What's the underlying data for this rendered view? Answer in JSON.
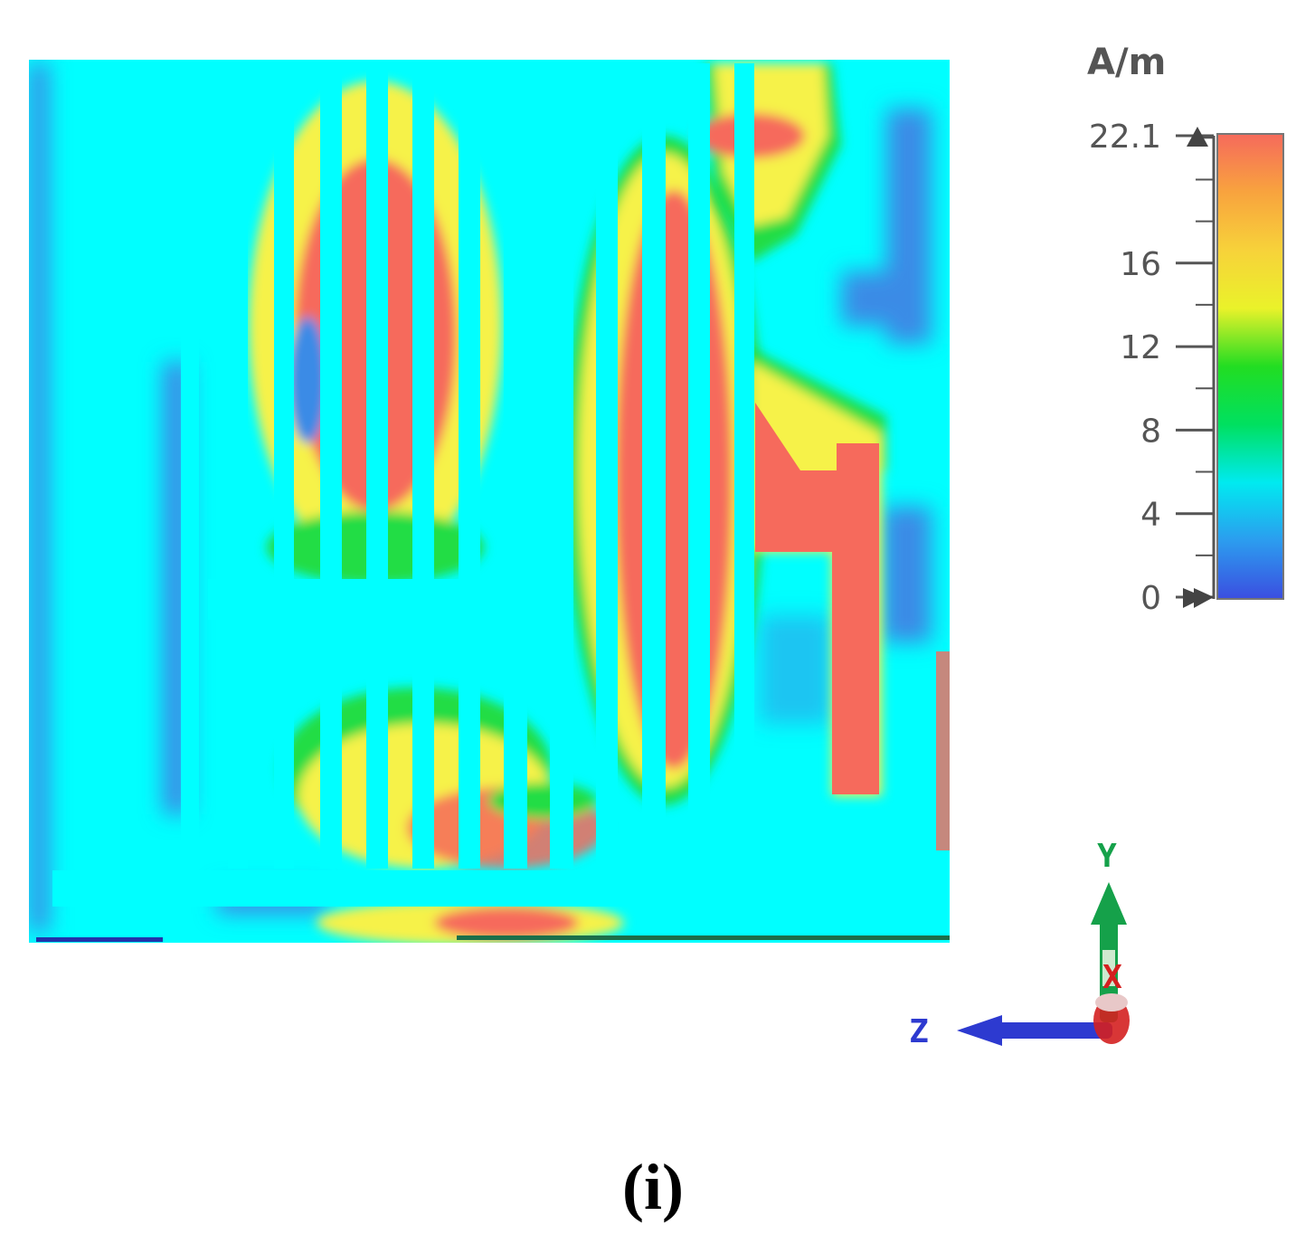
{
  "colorbar": {
    "unit": "A/m",
    "ticks": [
      {
        "label": "22.1",
        "value": 22.1
      },
      {
        "label": "16",
        "value": 16
      },
      {
        "label": "12",
        "value": 12
      },
      {
        "label": "8",
        "value": 8
      },
      {
        "label": "4",
        "value": 4
      },
      {
        "label": "0",
        "value": 0
      }
    ],
    "range": [
      0,
      22.1
    ],
    "colors": [
      "#3b4ee0",
      "#2c9cef",
      "#00eaf0",
      "#00e060",
      "#22dd22",
      "#eaf22a",
      "#f7d23a",
      "#f8a33e",
      "#f66a5c"
    ]
  },
  "axes": {
    "y_label": "Y",
    "x_label": "X",
    "z_label": "Z",
    "y_color": "#15a14a",
    "x_color": "#d42020",
    "z_color": "#2d3ad0"
  },
  "map_colors": {
    "background": "#00ffff",
    "hot": "#f66a5c",
    "warm": "#f6f24a",
    "mid": "#22dd44",
    "cool": "#3a8be6"
  },
  "caption": "(i)"
}
